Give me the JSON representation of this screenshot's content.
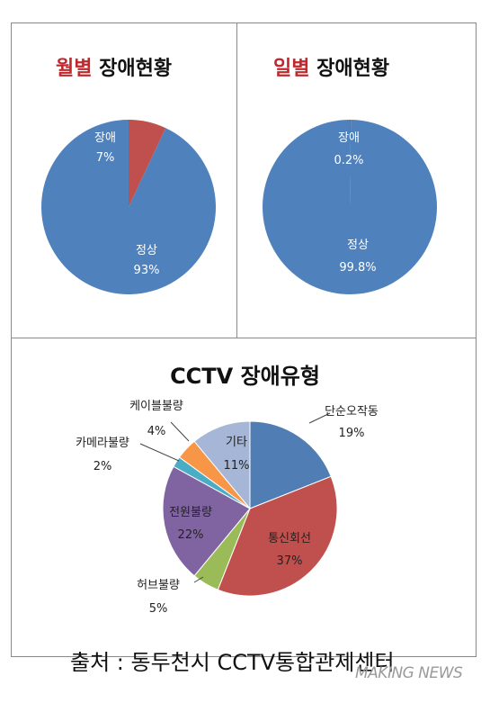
{
  "chart_data": [
    {
      "type": "pie",
      "title_highlight": "월별",
      "title_rest": "장애현황",
      "slices": [
        {
          "label": "장애",
          "value": 7,
          "value_label": "7%",
          "color": "#c0504d"
        },
        {
          "label": "정상",
          "value": 93,
          "value_label": "93%",
          "color": "#4f81bd"
        }
      ]
    },
    {
      "type": "pie",
      "title_highlight": "일별",
      "title_rest": "장애현황",
      "slices": [
        {
          "label": "장애",
          "value": 0.2,
          "value_label": "0.2%",
          "color": "#c0504d"
        },
        {
          "label": "정상",
          "value": 99.8,
          "value_label": "99.8%",
          "color": "#4f81bd"
        }
      ]
    },
    {
      "type": "pie",
      "title": "CCTV 장애유형",
      "slices": [
        {
          "label": "단순오작동",
          "value": 19,
          "value_label": "19%",
          "color": "#4f7db4"
        },
        {
          "label": "통신회선",
          "value": 37,
          "value_label": "37%",
          "color": "#c0504d"
        },
        {
          "label": "허브불량",
          "value": 5,
          "value_label": "5%",
          "color": "#9bbb59"
        },
        {
          "label": "전원불량",
          "value": 22,
          "value_label": "22%",
          "color": "#8064a2"
        },
        {
          "label": "카메라불량",
          "value": 2,
          "value_label": "2%",
          "color": "#4bacc6"
        },
        {
          "label": "케이블불량",
          "value": 4,
          "value_label": "4%",
          "color": "#f79646"
        },
        {
          "label": "기타",
          "value": 11,
          "value_label": "11%",
          "color": "#a5b6d6"
        }
      ]
    }
  ],
  "source": "출처 : 동두천시 CCTV통합관제센터",
  "watermark": "MAKING NEWS"
}
